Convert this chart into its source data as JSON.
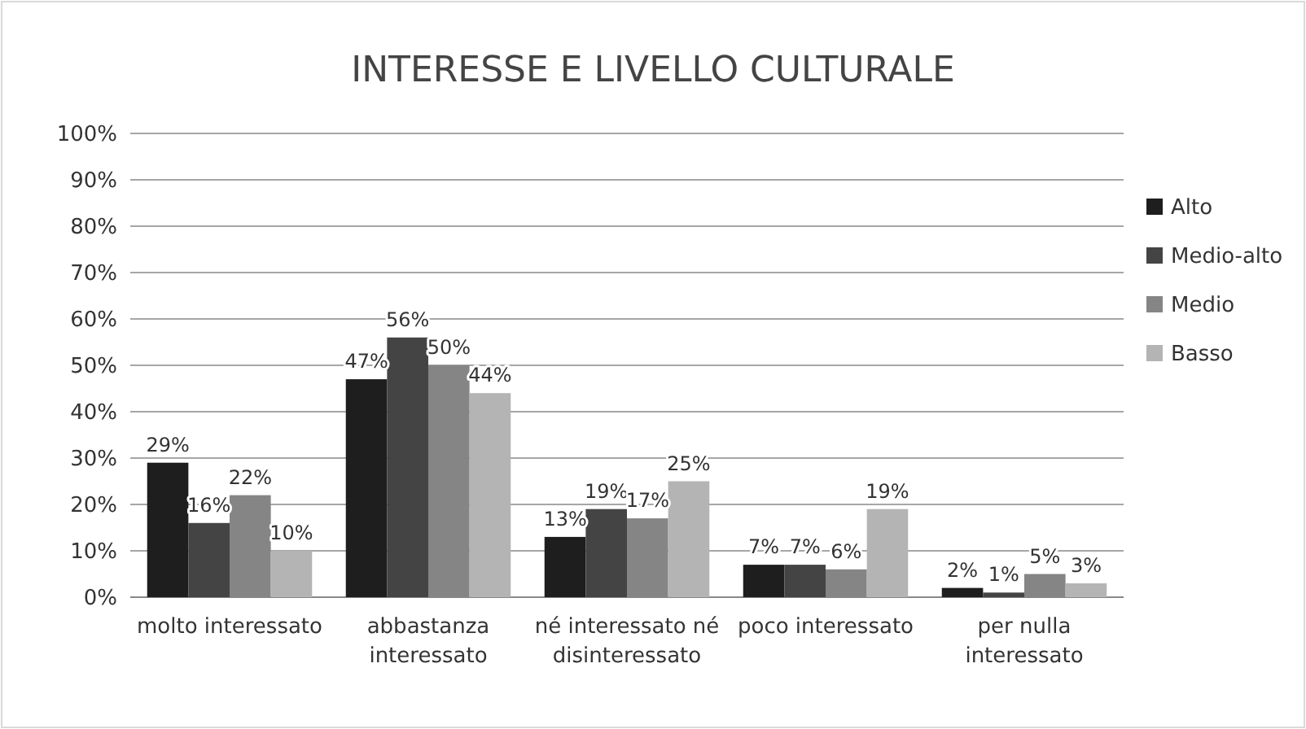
{
  "chart_data": {
    "type": "bar",
    "title": "INTERESSE E LIVELLO CULTURALE",
    "categories": [
      "molto interessato",
      "abbastanza interessato",
      "né interessato né disinteressato",
      "poco interessato",
      "per nulla interessato"
    ],
    "ylim": [
      0,
      100
    ],
    "yticks": [
      {
        "value": 0,
        "label": "0%"
      },
      {
        "value": 10,
        "label": "10%"
      },
      {
        "value": 20,
        "label": "20%"
      },
      {
        "value": 30,
        "label": "30%"
      },
      {
        "value": 40,
        "label": "40%"
      },
      {
        "value": 50,
        "label": "50%"
      },
      {
        "value": 60,
        "label": "60%"
      },
      {
        "value": 70,
        "label": "70%"
      },
      {
        "value": 80,
        "label": "80%"
      },
      {
        "value": 90,
        "label": "90%"
      },
      {
        "value": 100,
        "label": "100%"
      }
    ],
    "grid": "y",
    "legend": "right",
    "series": [
      {
        "name": "Alto",
        "color": "#1e1e1e",
        "values": [
          29,
          47,
          13,
          7,
          2
        ],
        "value_labels": [
          "29%",
          "47%",
          "13%",
          "7%",
          "2%"
        ]
      },
      {
        "name": "Medio-alto",
        "color": "#444444",
        "values": [
          16,
          56,
          19,
          7,
          1
        ],
        "value_labels": [
          "16%",
          "56%",
          "19%",
          "7%",
          "1%"
        ]
      },
      {
        "name": "Medio",
        "color": "#858585",
        "values": [
          22,
          50,
          17,
          6,
          5
        ],
        "value_labels": [
          "22%",
          "50%",
          "17%",
          "6%",
          "5%"
        ]
      },
      {
        "name": "Basso",
        "color": "#b4b4b4",
        "values": [
          10,
          44,
          25,
          19,
          3
        ],
        "value_labels": [
          "10%",
          "44%",
          "25%",
          "19%",
          "3%"
        ]
      }
    ]
  }
}
